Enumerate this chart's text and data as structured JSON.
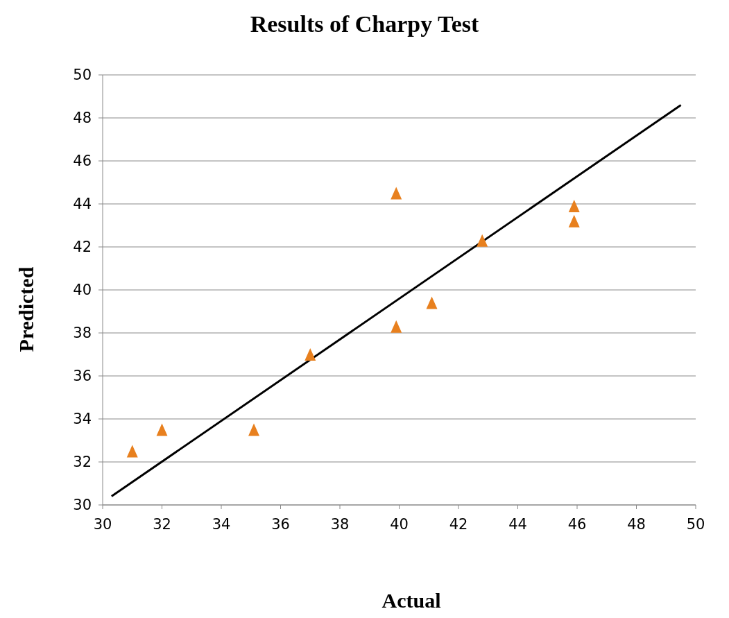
{
  "chart_data": {
    "type": "scatter",
    "title": "Results of Charpy Test",
    "xlabel": "Actual",
    "ylabel": "Predicted",
    "xlim": [
      30,
      50
    ],
    "xticks": [
      30,
      32,
      34,
      36,
      38,
      40,
      42,
      44,
      46,
      48,
      50
    ],
    "ylim": [
      30,
      50
    ],
    "yticks": [
      30,
      32,
      34,
      36,
      38,
      40,
      42,
      44,
      46,
      48,
      50
    ],
    "grid": "y",
    "legend": false,
    "series": [
      {
        "type": "scatter",
        "color": "#e8801e",
        "marker": "triangle",
        "x": [
          31,
          32,
          35.1,
          37,
          39.9,
          39.9,
          41.1,
          42.8,
          45.9,
          45.9
        ],
        "values": [
          32.5,
          33.5,
          33.5,
          37,
          44.5,
          38.3,
          39.4,
          42.3,
          43.9,
          43.2
        ]
      },
      {
        "type": "line",
        "color": "#000000",
        "marker": "none",
        "line_style": "solid",
        "x": [
          30.3,
          49.5
        ],
        "values": [
          30.4,
          48.6
        ]
      }
    ]
  }
}
